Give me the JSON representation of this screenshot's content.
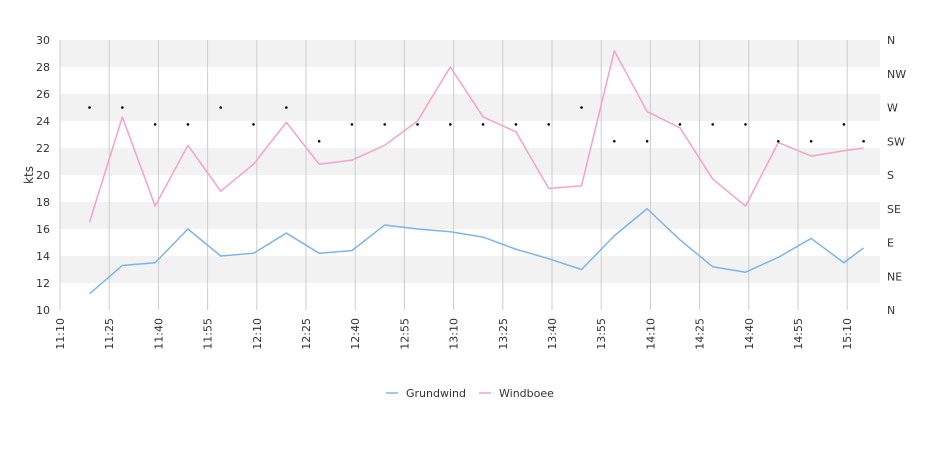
{
  "chart_data": {
    "type": "line",
    "ylabel": "kts",
    "ylim": [
      10,
      30
    ],
    "yticks": [
      10,
      12,
      14,
      16,
      18,
      20,
      22,
      24,
      26,
      28,
      30
    ],
    "y2_labels": [
      "N",
      "NE",
      "E",
      "SE",
      "S",
      "SW",
      "W",
      "NW",
      "N"
    ],
    "xlim_minutes": [
      670,
      920
    ],
    "x_tick_labels": [
      "11:10",
      "11:25",
      "11:40",
      "11:55",
      "12:10",
      "12:25",
      "12:40",
      "12:55",
      "13:10",
      "13:25",
      "13:40",
      "13:55",
      "14:10",
      "14:25",
      "14:40",
      "14:55",
      "15:10"
    ],
    "x_tick_minutes": [
      670,
      685,
      700,
      715,
      730,
      745,
      760,
      775,
      790,
      805,
      820,
      835,
      850,
      865,
      880,
      895,
      910
    ],
    "x": [
      "11:19",
      "11:29",
      "11:39",
      "11:49",
      "11:59",
      "12:09",
      "12:19",
      "12:29",
      "12:39",
      "12:49",
      "12:59",
      "13:09",
      "13:19",
      "13:29",
      "13:39",
      "13:49",
      "13:59",
      "14:09",
      "14:19",
      "14:29",
      "14:39",
      "14:49",
      "14:59",
      "15:09",
      "15:15"
    ],
    "x_minutes": [
      679,
      689,
      699,
      709,
      719,
      729,
      739,
      749,
      759,
      769,
      779,
      789,
      799,
      809,
      819,
      829,
      839,
      849,
      859,
      869,
      879,
      889,
      899,
      909,
      915
    ],
    "series": [
      {
        "name": "Grundwind",
        "color": "#7cb5ec",
        "values": [
          11.2,
          13.3,
          13.5,
          16.0,
          14.0,
          14.2,
          15.7,
          14.2,
          14.4,
          16.3,
          16.0,
          15.8,
          15.4,
          14.5,
          13.8,
          13.0,
          15.5,
          17.5,
          15.2,
          13.2,
          12.8,
          13.9,
          15.3,
          13.5,
          14.6
        ]
      },
      {
        "name": "Windboee",
        "color": "#f7a1c4",
        "values": [
          16.5,
          24.3,
          17.7,
          22.2,
          18.8,
          20.8,
          23.9,
          20.8,
          21.1,
          22.2,
          24.0,
          28.0,
          24.3,
          23.2,
          19.0,
          19.2,
          29.2,
          24.7,
          23.5,
          19.7,
          17.7,
          22.4,
          21.4,
          21.8,
          22.0
        ]
      }
    ],
    "direction_markers": {
      "description_units": "compass (0=N, 90=E, 180=S, 270=W)",
      "minutes": [
        679,
        689,
        699,
        709,
        719,
        729,
        739,
        749,
        759,
        769,
        779,
        789,
        799,
        809,
        819,
        829,
        839,
        849,
        859,
        869,
        879,
        889,
        899,
        909,
        915
      ],
      "degrees": [
        270,
        270,
        247.5,
        247.5,
        270,
        247.5,
        270,
        225,
        247.5,
        247.5,
        247.5,
        247.5,
        247.5,
        247.5,
        247.5,
        270,
        225,
        225,
        247.5,
        247.5,
        247.5,
        225,
        225,
        247.5,
        225
      ]
    },
    "grid": true,
    "legend_position": "bottom-center",
    "colors": {
      "band": "#f2f2f2",
      "grid": "#cccccc",
      "axis_text": "#333333",
      "marker": "#000000"
    }
  }
}
